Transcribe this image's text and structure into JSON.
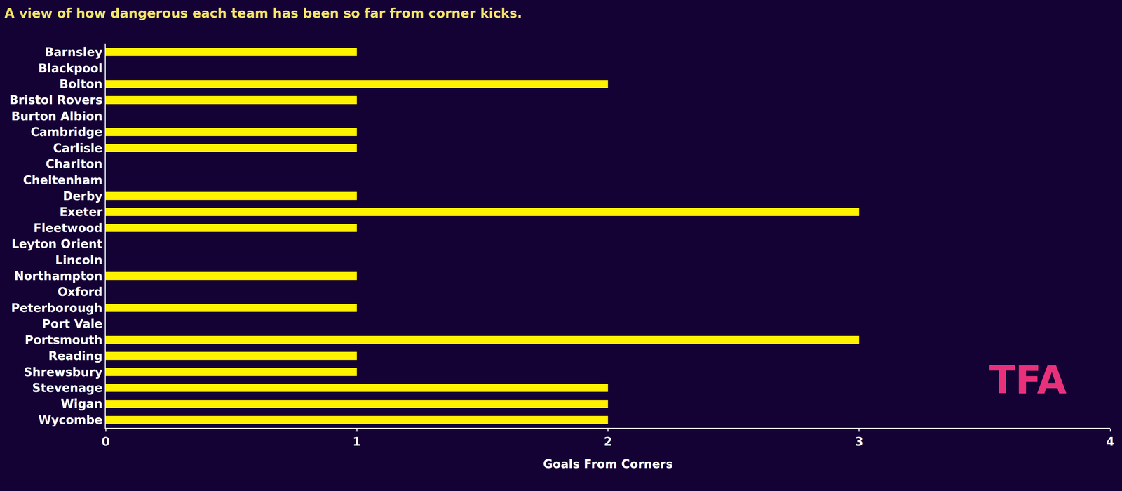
{
  "chart_data": {
    "type": "bar",
    "orientation": "horizontal",
    "title": "A view of how dangerous each team has been so far from corner kicks.",
    "x_label": "Goals From Corners",
    "categories": [
      "Barnsley",
      "Blackpool",
      "Bolton",
      "Bristol Rovers",
      "Burton Albion",
      "Cambridge",
      "Carlisle",
      "Charlton",
      "Cheltenham",
      "Derby",
      "Exeter",
      "Fleetwood",
      "Leyton Orient",
      "Lincoln",
      "Northampton",
      "Oxford",
      "Peterborough",
      "Port Vale",
      "Portsmouth",
      "Reading",
      "Shrewsbury",
      "Stevenage",
      "Wigan",
      "Wycombe"
    ],
    "values": [
      1,
      0,
      2,
      1,
      0,
      1,
      1,
      0,
      0,
      1,
      3,
      1,
      0,
      0,
      1,
      0,
      1,
      0,
      3,
      1,
      1,
      2,
      2,
      2
    ],
    "color": "#fff200",
    "xlim": [
      0,
      4
    ],
    "xticks": [
      0,
      1,
      2,
      3,
      4
    ],
    "grid": false,
    "annotations": [
      "TFA"
    ]
  }
}
